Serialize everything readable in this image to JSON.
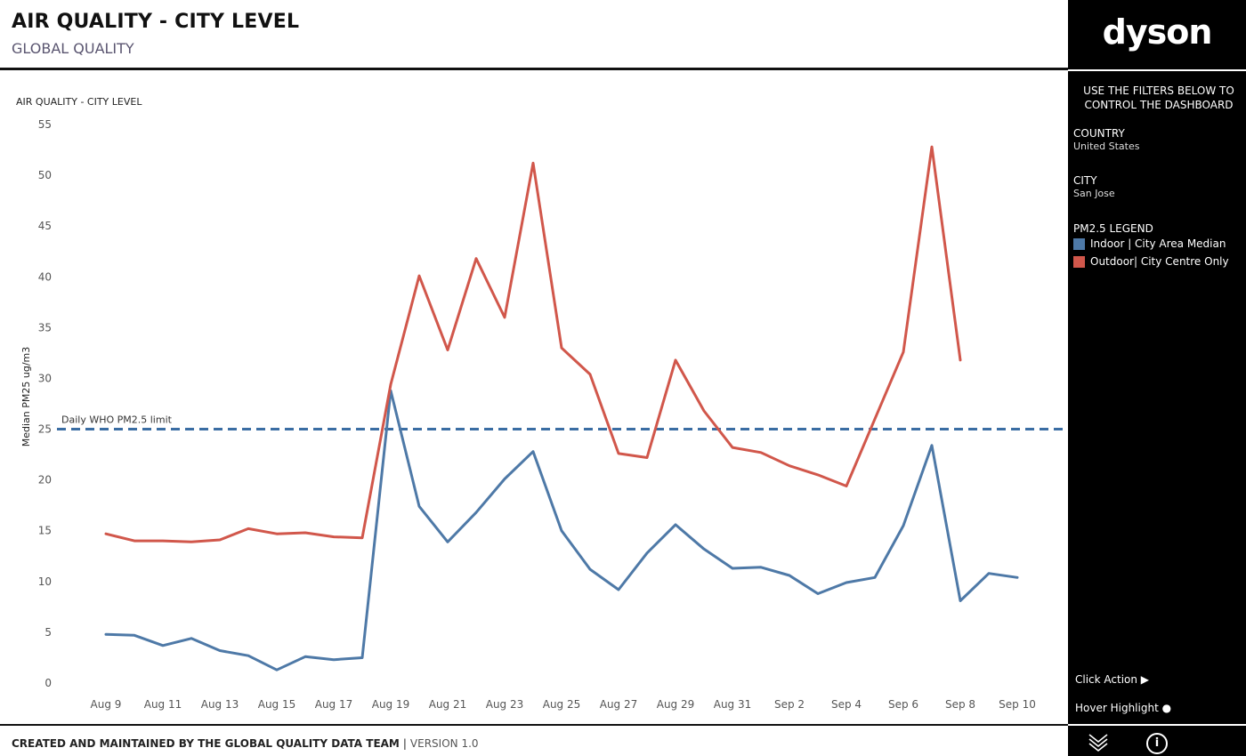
{
  "header": {
    "title": "AIR QUALITY - CITY LEVEL",
    "subtitle": "GLOBAL QUALITY"
  },
  "footer": {
    "credit": "CREATED AND MAINTAINED BY THE GLOBAL QUALITY DATA TEAM",
    "separator": "|",
    "version": "VERSION 1.0"
  },
  "sidebar": {
    "logo": "dyson",
    "instruction": "USE THE FILTERS BELOW TO CONTROL THE DASHBOARD",
    "country_label": "COUNTRY",
    "country_value": "United States",
    "city_label": "CITY",
    "city_value": "San Jose",
    "legend_title": "PM2.5 LEGEND",
    "legend": [
      {
        "label": "Indoor | City Area Median",
        "color": "#4e79a7"
      },
      {
        "label": "Outdoor| City Centre Only",
        "color": "#d1574b"
      }
    ],
    "click_action": "Click Action ▶",
    "hover_highlight": "Hover Highlight ●",
    "icons": [
      "chevron-stack-icon",
      "info-icon"
    ]
  },
  "chart_data": {
    "type": "line",
    "title": "AIR QUALITY - CITY LEVEL",
    "ylabel": "Median PM25 ug/m3",
    "xlabel": "",
    "ylim": [
      0,
      55
    ],
    "yticks": [
      0,
      5,
      10,
      15,
      20,
      25,
      30,
      35,
      40,
      45,
      50,
      55
    ],
    "x": [
      "Aug 9",
      "Aug 10",
      "Aug 11",
      "Aug 12",
      "Aug 13",
      "Aug 14",
      "Aug 15",
      "Aug 16",
      "Aug 17",
      "Aug 18",
      "Aug 19",
      "Aug 20",
      "Aug 21",
      "Aug 22",
      "Aug 23",
      "Aug 24",
      "Aug 25",
      "Aug 26",
      "Aug 27",
      "Aug 28",
      "Aug 29",
      "Aug 30",
      "Aug 31",
      "Sep 1",
      "Sep 2",
      "Sep 3",
      "Sep 4",
      "Sep 5",
      "Sep 6",
      "Sep 7",
      "Sep 8",
      "Sep 9",
      "Sep 10"
    ],
    "xtick_labels": [
      "Aug 9",
      "Aug 11",
      "Aug 13",
      "Aug 15",
      "Aug 17",
      "Aug 19",
      "Aug 21",
      "Aug 23",
      "Aug 25",
      "Aug 27",
      "Aug 29",
      "Aug 31",
      "Sep 2",
      "Sep 4",
      "Sep 6",
      "Sep 8",
      "Sep 10"
    ],
    "series": [
      {
        "name": "Indoor | City Area Median",
        "color": "#4e79a7",
        "values": [
          4.8,
          4.7,
          3.7,
          4.4,
          3.2,
          2.7,
          1.3,
          2.6,
          2.3,
          2.5,
          28.8,
          17.4,
          13.9,
          16.8,
          20.1,
          22.8,
          15.0,
          11.2,
          9.2,
          12.8,
          15.6,
          13.2,
          11.3,
          11.4,
          10.6,
          8.8,
          9.9,
          10.4,
          15.5,
          23.4,
          8.1,
          10.8,
          10.4
        ]
      },
      {
        "name": "Outdoor| City Centre Only",
        "color": "#d1574b",
        "values": [
          14.7,
          14.0,
          14.0,
          13.9,
          14.1,
          15.2,
          14.7,
          14.8,
          14.4,
          14.3,
          29.4,
          40.1,
          32.8,
          41.8,
          36.0,
          51.2,
          33.0,
          30.4,
          22.6,
          22.2,
          31.8,
          26.8,
          23.2,
          22.7,
          21.4,
          20.5,
          19.4,
          26.0,
          32.6,
          52.8,
          31.8,
          null,
          null
        ]
      }
    ],
    "reference_line": {
      "value": 25,
      "label": "Daily WHO PM2.5 limit",
      "color": "#3a6da3"
    },
    "grid": false,
    "legend": "right-sidebar"
  }
}
